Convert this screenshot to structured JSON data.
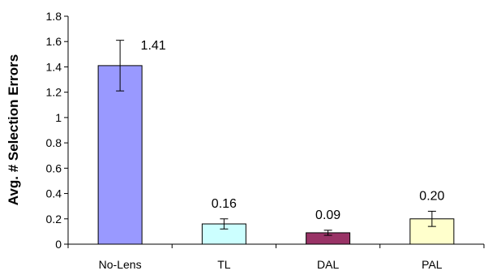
{
  "chart_data": {
    "type": "bar",
    "title": "",
    "xlabel": "",
    "ylabel": "Avg. # Selection Errors",
    "ylim": [
      0,
      1.8
    ],
    "yticks": [
      0,
      0.2,
      0.4,
      0.6,
      0.8,
      1,
      1.2,
      1.4,
      1.6,
      1.8
    ],
    "ytick_labels": [
      "0",
      "0.2",
      "0.4",
      "0.6",
      "0.8",
      "1",
      "1.2",
      "1.4",
      "1.6",
      "1.8"
    ],
    "grid": false,
    "legend": "none",
    "categories": [
      "No-Lens",
      "TL",
      "DAL",
      "PAL"
    ],
    "values": [
      1.41,
      0.16,
      0.09,
      0.2
    ],
    "value_labels": [
      "1.41",
      "0.16",
      "0.09",
      "0.20"
    ],
    "error": [
      0.2,
      0.04,
      0.02,
      0.06
    ],
    "colors": [
      "#9999FF",
      "#CCFFFF",
      "#993366",
      "#FFFFCC"
    ]
  }
}
